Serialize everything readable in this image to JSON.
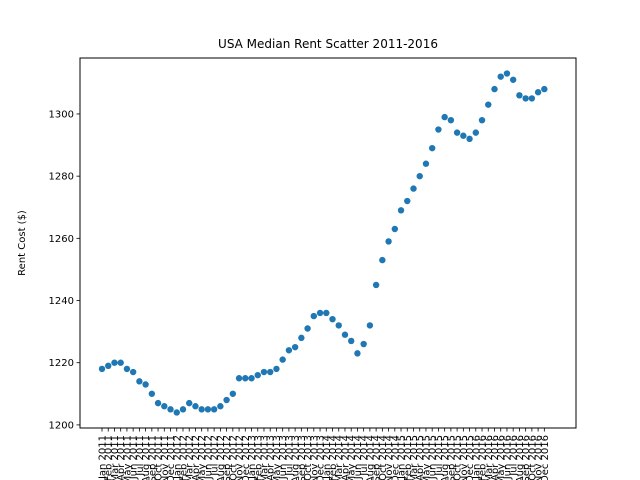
{
  "chart_data": {
    "type": "scatter",
    "title": "USA Median Rent Scatter 2011-2016",
    "xlabel": "",
    "ylabel": "Rent Cost ($)",
    "ylim": [
      1199,
      1318
    ],
    "yticks": [
      1200,
      1220,
      1240,
      1260,
      1280,
      1300
    ],
    "grid": false,
    "legend": "none",
    "marker_color": "#1f77b4",
    "categories": [
      "Jan 2011",
      "Feb 2011",
      "Mar 2011",
      "Apr 2011",
      "May 2011",
      "Jun 2011",
      "Jul 2011",
      "Aug 2011",
      "Sep 2011",
      "Oct 2011",
      "Nov 2011",
      "Dec 2011",
      "Jan 2012",
      "Feb 2012",
      "Mar 2012",
      "Apr 2012",
      "May 2012",
      "Jun 2012",
      "Jul 2012",
      "Aug 2012",
      "Sep 2012",
      "Oct 2012",
      "Nov 2012",
      "Dec 2012",
      "Jan 2013",
      "Feb 2013",
      "Mar 2013",
      "Apr 2013",
      "May 2013",
      "Jun 2013",
      "Jul 2013",
      "Aug 2013",
      "Sep 2013",
      "Oct 2013",
      "Nov 2013",
      "Dec 2013",
      "Jan 2014",
      "Feb 2014",
      "Mar 2014",
      "Apr 2014",
      "May 2014",
      "Jun 2014",
      "Jul 2014",
      "Aug 2014",
      "Sep 2014",
      "Oct 2014",
      "Nov 2014",
      "Dec 2014",
      "Jan 2015",
      "Feb 2015",
      "Mar 2015",
      "Apr 2015",
      "May 2015",
      "Jun 2015",
      "Jul 2015",
      "Aug 2015",
      "Sep 2015",
      "Oct 2015",
      "Nov 2015",
      "Dec 2015",
      "Jan 2016",
      "Feb 2016",
      "Mar 2016",
      "Apr 2016",
      "May 2016",
      "Jun 2016",
      "Jul 2016",
      "Aug 2016",
      "Sep 2016",
      "Oct 2016",
      "Nov 2016",
      "Dec 2016"
    ],
    "values": [
      1218,
      1219,
      1220,
      1220,
      1218,
      1217,
      1214,
      1213,
      1210,
      1207,
      1206,
      1205,
      1204,
      1205,
      1207,
      1206,
      1205,
      1205,
      1205,
      1206,
      1208,
      1210,
      1215,
      1215,
      1215,
      1216,
      1217,
      1217,
      1218,
      1221,
      1224,
      1225,
      1228,
      1231,
      1235,
      1236,
      1236,
      1234,
      1232,
      1229,
      1227,
      1223,
      1226,
      1232,
      1245,
      1253,
      1259,
      1263,
      1269,
      1272,
      1276,
      1280,
      1284,
      1289,
      1295,
      1299,
      1298,
      1294,
      1293,
      1292,
      1294,
      1298,
      1303,
      1308,
      1312,
      1313,
      1311,
      1306,
      1305,
      1305,
      1307,
      1308
    ]
  }
}
